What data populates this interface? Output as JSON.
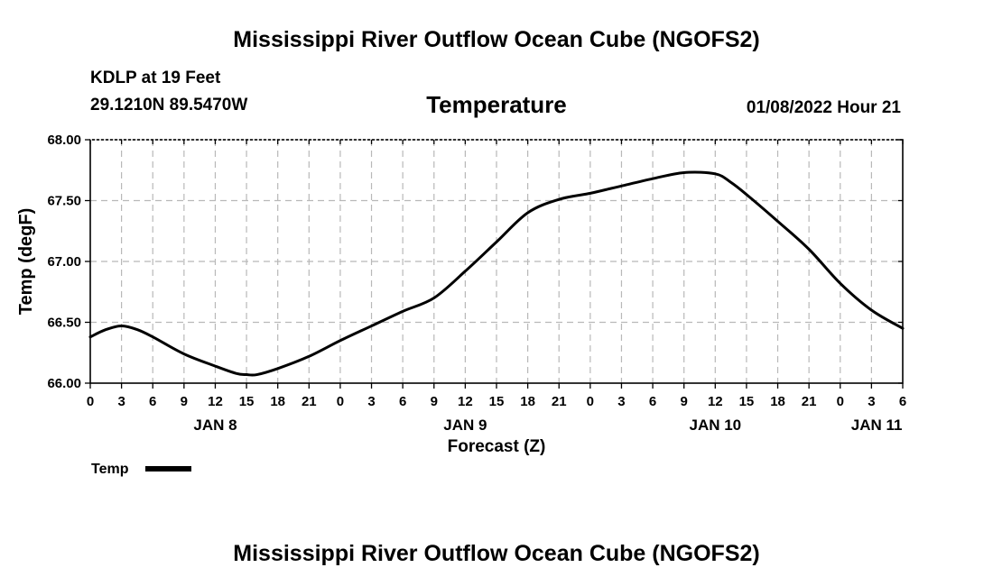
{
  "page": {
    "title_top": "Mississippi River Outflow Ocean Cube (NGOFS2)",
    "title_bottom": "Mississippi River Outflow Ocean Cube (NGOFS2)",
    "station": "KDLP at 19 Feet",
    "coords": "29.1210N  89.5470W",
    "variable": "Temperature",
    "datetime": "01/08/2022 Hour 21"
  },
  "chart_data": {
    "type": "line",
    "title": "Temperature",
    "xlabel": "Forecast (Z)",
    "ylabel": "Temp (degF)",
    "x_unit": "hours since 2022-01-08 00Z",
    "xlim": [
      0,
      78
    ],
    "ylim": [
      66.0,
      68.0
    ],
    "y_ticks": [
      66.0,
      66.5,
      67.0,
      67.5,
      68.0
    ],
    "y_tick_labels": [
      "66.00",
      "66.50",
      "67.00",
      "67.50",
      "68.00"
    ],
    "x_ticks": [
      0,
      3,
      6,
      9,
      12,
      15,
      18,
      21,
      24,
      27,
      30,
      33,
      36,
      39,
      42,
      45,
      48,
      51,
      54,
      57,
      60,
      63,
      66,
      69,
      72,
      75,
      78
    ],
    "x_tick_labels": [
      "0",
      "3",
      "6",
      "9",
      "12",
      "15",
      "18",
      "21",
      "0",
      "3",
      "6",
      "9",
      "12",
      "15",
      "18",
      "21",
      "0",
      "3",
      "6",
      "9",
      "12",
      "15",
      "18",
      "21",
      "0",
      "3",
      "6"
    ],
    "day_labels": [
      {
        "label": "JAN 8",
        "x": 12
      },
      {
        "label": "JAN 9",
        "x": 36
      },
      {
        "label": "JAN 10",
        "x": 60
      },
      {
        "label": "JAN 11",
        "x": 75.5
      }
    ],
    "grid": true,
    "legend": "bottom-left",
    "series": [
      {
        "name": "Temp",
        "x": [
          0,
          1.5,
          3,
          4.5,
          6,
          9,
          12,
          14,
          15,
          16,
          18,
          21,
          24,
          27,
          30,
          33,
          36,
          39,
          42,
          45,
          48,
          50,
          51,
          54,
          57,
          60,
          61.5,
          63,
          66,
          69,
          72,
          75,
          78
        ],
        "values": [
          66.38,
          66.44,
          66.47,
          66.44,
          66.38,
          66.24,
          66.14,
          66.08,
          66.07,
          66.07,
          66.12,
          66.22,
          66.35,
          66.47,
          66.59,
          66.7,
          66.92,
          67.16,
          67.4,
          67.51,
          67.56,
          67.6,
          67.62,
          67.68,
          67.73,
          67.72,
          67.65,
          67.55,
          67.33,
          67.1,
          66.82,
          66.6,
          66.45
        ]
      }
    ]
  }
}
